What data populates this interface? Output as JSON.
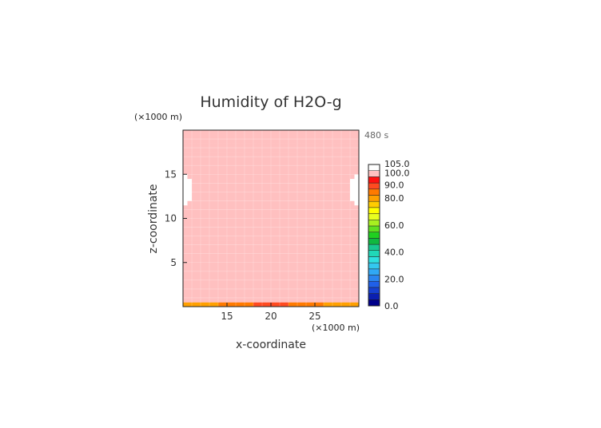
{
  "chart_data": {
    "type": "heatmap",
    "title": "Humidity of H2O-g",
    "time_label": "480 s",
    "xlabel": "x-coordinate",
    "ylabel": "z-coordinate",
    "x_unit": "(×1000 m)",
    "y_unit": "(×1000 m)",
    "xlim": [
      10,
      30
    ],
    "ylim": [
      0,
      20
    ],
    "x_ticks": [
      15,
      20,
      25
    ],
    "y_ticks": [
      5,
      10,
      15
    ],
    "grid": true,
    "legend_placement": "right",
    "colorbar": {
      "range": [
        0,
        105
      ],
      "tick_values": [
        0,
        20,
        40,
        60,
        80,
        90,
        100,
        105
      ],
      "tick_labels": [
        "0.0",
        "20.0",
        "40.0",
        "60.0",
        "80.0",
        "90.0",
        "100.0",
        "105.0"
      ],
      "colors": [
        "#00008b",
        "#0a1fb0",
        "#1640d0",
        "#2060e8",
        "#2a85f0",
        "#30a8f5",
        "#33c8f0",
        "#2ee0e0",
        "#20d8b8",
        "#18c890",
        "#10b840",
        "#20d020",
        "#60e020",
        "#a8f020",
        "#e8ff20",
        "#ffff00",
        "#ffcc00",
        "#ffa000",
        "#ff7a00",
        "#ff4a20",
        "#ff1010",
        "#ffc0c0",
        "#ffffff"
      ]
    },
    "field_summary": {
      "dominant_value": 100,
      "bottom_row_values": [
        80,
        82,
        84,
        86,
        88,
        88,
        86,
        84,
        82,
        80
      ],
      "left_edge_low_patch": {
        "z_range": [
          11.5,
          15
        ],
        "value": 101
      },
      "right_edge_low_patch": {
        "z_range": [
          11.5,
          15
        ],
        "value": 101
      }
    }
  }
}
